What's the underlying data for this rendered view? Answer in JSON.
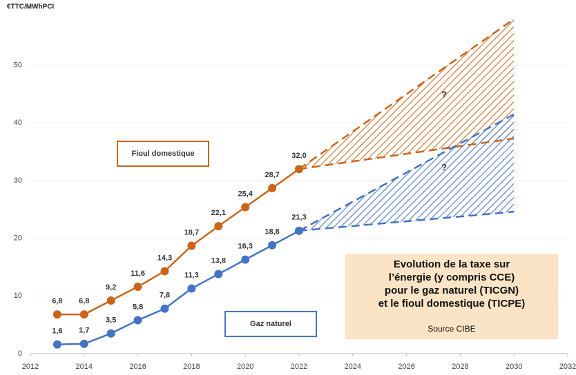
{
  "chart_data": {
    "type": "line",
    "y_label": "€TTC/MWhPCI",
    "x": [
      2013,
      2014,
      2015,
      2016,
      2017,
      2018,
      2019,
      2020,
      2021,
      2022
    ],
    "series": [
      {
        "name": "Fioul domestique",
        "color": "#c8651b",
        "values": [
          6.8,
          6.8,
          9.2,
          11.6,
          14.3,
          18.7,
          22.1,
          25.4,
          28.7,
          32.0
        ],
        "value_labels": [
          "6,8",
          "6,8",
          "9,2",
          "11,6",
          "14,3",
          "18,7",
          "22,1",
          "25,4",
          "28,7",
          "32,0"
        ]
      },
      {
        "name": "Gaz naturel",
        "color": "#4472c4",
        "values": [
          1.6,
          1.7,
          3.5,
          5.8,
          7.8,
          11.3,
          13.8,
          16.3,
          18.8,
          21.3
        ],
        "value_labels": [
          "1,6",
          "1,7",
          "3,5",
          "5,8",
          "7,8",
          "11,3",
          "13,8",
          "16,3",
          "18,8",
          "21,3"
        ]
      }
    ],
    "projections": [
      {
        "color": "#c8651b",
        "x": [
          2022,
          2030
        ],
        "upper": [
          32.0,
          58
        ],
        "lower": [
          32.0,
          37.3
        ],
        "annotation": "?"
      },
      {
        "color": "#4472c4",
        "x": [
          2022,
          2030
        ],
        "upper": [
          21.3,
          41.5
        ],
        "lower": [
          21.3,
          24.6
        ],
        "annotation": "?"
      }
    ],
    "note": {
      "lines": [
        "Evolution de la taxe sur",
        "l’énergie (y compris CCE)",
        "pour le gaz naturel (TICGN)",
        "et le fioul domestique (TICPE)"
      ],
      "source": "Source CIBE"
    },
    "xlim": [
      2012,
      2032
    ],
    "xticks": [
      2012,
      2014,
      2016,
      2018,
      2020,
      2022,
      2024,
      2026,
      2028,
      2030,
      2032
    ],
    "ylim": [
      0,
      60
    ],
    "yticks": [
      0,
      10,
      20,
      30,
      40,
      50
    ],
    "grid": true
  }
}
